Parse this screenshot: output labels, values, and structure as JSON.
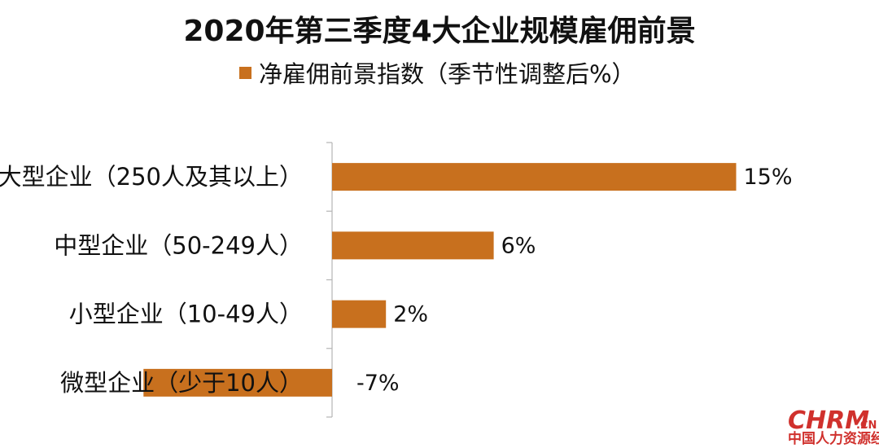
{
  "chart_data": {
    "type": "bar",
    "orientation": "horizontal",
    "title": "2020年第三季度4大企业规模雇佣前景",
    "legend": {
      "position": "top-center"
    },
    "series": [
      {
        "name": "净雇佣前景指数（季节性调整后%）",
        "values": [
          15,
          6,
          2,
          -7
        ]
      }
    ],
    "categories": [
      "大型企业（250人及其以上）",
      "中型企业（50-249人）",
      "小型企业（10-49人）",
      "微型企业（少于10人）"
    ],
    "data_labels": [
      "15%",
      "6%",
      "2%",
      "-7%"
    ],
    "xlim": [
      -7,
      15
    ],
    "grid": false,
    "bar_color": "#C8701E"
  },
  "watermark": {
    "main": "CHRM",
    "suffix": ".CN",
    "subtitle": "中国人力资源经理"
  }
}
